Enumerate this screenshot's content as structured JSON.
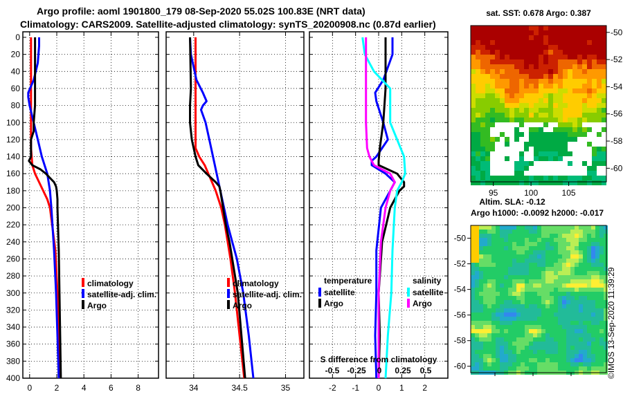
{
  "header": {
    "line1": "Argo profile: aoml 1901800_179 08-Sep-2020 55.02S 100.83E (NRT data)",
    "line2": "Climatology: CARS2009. Satellite-adjusted climatology: synTS_20200908.nc (0.87d earlier)"
  },
  "watermark": "©IMOS 13-Sep-2020 11:39:29",
  "colors": {
    "climatology": "#ff0000",
    "satellite": "#0000ff",
    "argo": "#000000",
    "sal_sat": "#00ffff",
    "sal_argo": "#ff00ff"
  },
  "chart_data": [
    {
      "type": "line",
      "name": "temperature-profile",
      "xticks": [
        "0",
        "2",
        "4",
        "6",
        "8"
      ],
      "xlim": [
        -0.5,
        9.5
      ],
      "ylim": [
        400,
        0
      ],
      "yticks": [
        "0",
        "20",
        "40",
        "60",
        "80",
        "100",
        "120",
        "140",
        "160",
        "180",
        "200",
        "220",
        "240",
        "260",
        "280",
        "300",
        "320",
        "340",
        "360",
        "380",
        "400"
      ],
      "legend": [
        "climatology",
        "satellite-adj. clim.",
        "Argo"
      ],
      "series": [
        {
          "name": "climatology",
          "color": "#ff0000",
          "depth": [
            0,
            40,
            80,
            100,
            130,
            150,
            160,
            170,
            180,
            190,
            200,
            250,
            300,
            350,
            400
          ],
          "values": [
            0.1,
            0.1,
            0.1,
            0.1,
            0.1,
            0.2,
            0.4,
            0.7,
            1.0,
            1.3,
            1.5,
            1.9,
            2.05,
            2.15,
            2.25
          ]
        },
        {
          "name": "satellite-adj. clim.",
          "color": "#0000ff",
          "depth": [
            0,
            10,
            30,
            50,
            65,
            70,
            80,
            100,
            120,
            140,
            160,
            180,
            200,
            250,
            300,
            350,
            400
          ],
          "values": [
            0.7,
            0.7,
            0.6,
            0.3,
            -0.1,
            -0.1,
            0.0,
            0.3,
            0.6,
            0.9,
            1.3,
            1.5,
            1.6,
            1.8,
            1.95,
            2.05,
            2.15
          ]
        },
        {
          "name": "Argo",
          "color": "#000000",
          "depth": [
            0,
            20,
            60,
            80,
            100,
            110,
            120,
            130,
            140,
            145,
            150,
            155,
            160,
            165,
            170,
            175,
            180,
            190,
            200,
            250,
            300,
            350,
            400
          ],
          "values": [
            0.4,
            0.4,
            0.4,
            0.4,
            0.3,
            0.3,
            0.1,
            0.1,
            0.1,
            -0.05,
            0.2,
            0.8,
            1.2,
            1.5,
            1.8,
            1.95,
            2.0,
            2.05,
            2.05,
            2.15,
            2.2,
            2.25,
            2.3
          ]
        }
      ]
    },
    {
      "type": "line",
      "name": "salinity-profile",
      "xticks": [
        "34",
        "34.5",
        "35"
      ],
      "xlim": [
        33.7,
        35.2
      ],
      "ylim": [
        400,
        0
      ],
      "legend": [
        "climatology",
        "satellite-adj. clim.",
        "Argo"
      ],
      "series": [
        {
          "name": "climatology",
          "color": "#ff0000",
          "depth": [
            0,
            100,
            120,
            130,
            140,
            150,
            160,
            170,
            180,
            200,
            220,
            240,
            260,
            300,
            350,
            400
          ],
          "values": [
            34.02,
            34.02,
            34.02,
            34.02,
            34.06,
            34.12,
            34.16,
            34.2,
            34.24,
            34.3,
            34.34,
            34.37,
            34.4,
            34.45,
            34.5,
            34.55
          ]
        },
        {
          "name": "satellite-adj. clim.",
          "color": "#0000ff",
          "depth": [
            0,
            20,
            50,
            65,
            75,
            80,
            85,
            100,
            120,
            140,
            160,
            180,
            200,
            220,
            240,
            260,
            300,
            350,
            400
          ],
          "values": [
            33.96,
            33.97,
            34.03,
            34.1,
            34.14,
            34.1,
            34.08,
            34.13,
            34.17,
            34.21,
            34.25,
            34.29,
            34.33,
            34.37,
            34.42,
            34.47,
            34.54,
            34.6,
            34.65
          ]
        },
        {
          "name": "Argo",
          "color": "#000000",
          "depth": [
            0,
            60,
            80,
            100,
            120,
            140,
            150,
            160,
            170,
            175,
            180,
            200,
            220,
            240,
            260,
            280,
            300,
            350,
            400
          ],
          "values": [
            33.96,
            33.97,
            33.96,
            33.96,
            33.98,
            34.02,
            34.05,
            34.14,
            34.24,
            34.28,
            34.29,
            34.32,
            34.35,
            34.39,
            34.42,
            34.45,
            34.48,
            34.52,
            34.56
          ]
        }
      ]
    },
    {
      "type": "line",
      "name": "difference-profile",
      "xticks": [
        "-2",
        "-1",
        "0",
        "1",
        "2"
      ],
      "xlim": [
        -3,
        3
      ],
      "ylim": [
        400,
        0
      ],
      "xlabel": "S difference from climatology",
      "x2ticks": [
        "-0.5",
        "-0.25",
        "0",
        "0.25",
        "0.5"
      ],
      "legend_temperature_title": "temperature",
      "legend_salinity_title": "salinity",
      "legend_temperature": [
        "satellite",
        "Argo"
      ],
      "legend_salinity": [
        "satellite",
        "Argo"
      ],
      "series": [
        {
          "name": "T satellite",
          "color": "#0000ff",
          "depth": [
            0,
            20,
            50,
            65,
            75,
            100,
            120,
            140,
            145,
            150,
            160,
            170,
            180,
            200,
            250,
            300,
            350,
            400
          ],
          "values": [
            0.6,
            0.6,
            0.2,
            -0.15,
            -0.1,
            0.2,
            0.4,
            -0.1,
            -0.3,
            -0.3,
            0.3,
            0.7,
            0.5,
            0.1,
            -0.1,
            -0.1,
            -0.15,
            -0.1
          ]
        },
        {
          "name": "T Argo",
          "color": "#000000",
          "depth": [
            0,
            60,
            100,
            130,
            145,
            150,
            155,
            160,
            170,
            175,
            180,
            200,
            240,
            300,
            350,
            400
          ],
          "values": [
            0.3,
            0.3,
            0.2,
            0.05,
            0.0,
            0.0,
            0.4,
            0.8,
            1.1,
            1.1,
            0.9,
            0.5,
            0.15,
            0.0,
            0.05,
            0.0
          ]
        },
        {
          "name": "S satellite",
          "color": "#00ffff",
          "depth": [
            0,
            20,
            40,
            60,
            80,
            100,
            120,
            140,
            160,
            170,
            180,
            200,
            250,
            300,
            350,
            400
          ],
          "values": [
            -0.7,
            -0.6,
            -0.2,
            0.5,
            0.5,
            0.5,
            0.8,
            1.1,
            1.15,
            1.0,
            0.8,
            0.7,
            0.6,
            0.55,
            0.4,
            0.3
          ]
        },
        {
          "name": "S Argo",
          "color": "#ff00ff",
          "depth": [
            0,
            100,
            130,
            140,
            150,
            160,
            170,
            180,
            200,
            240,
            300,
            350,
            400
          ],
          "values": [
            -0.55,
            -0.55,
            -0.5,
            -0.4,
            -0.2,
            0.5,
            0.7,
            0.5,
            0.3,
            0.1,
            0.0,
            0.0,
            0.0
          ]
        }
      ]
    },
    {
      "type": "heatmap",
      "name": "sst-map",
      "title": "sat. SST: 0.678 Argo: 0.387",
      "xticks": [
        "95",
        "100",
        "105"
      ],
      "yticks": [
        "-50",
        "-52",
        "-54",
        "-56",
        "-58",
        "-60"
      ],
      "xlim": [
        92,
        110
      ],
      "ylim": [
        -61,
        -49.5
      ]
    },
    {
      "type": "heatmap",
      "name": "sla-map",
      "title": "Altim. SLA: -0.12",
      "subtitle": "Argo h1000: -0.0092 h2000: -0.017",
      "yticks": [
        "-50",
        "-52",
        "-54",
        "-56",
        "-58",
        "-60"
      ],
      "ylim": [
        -60.5,
        -49
      ]
    }
  ]
}
